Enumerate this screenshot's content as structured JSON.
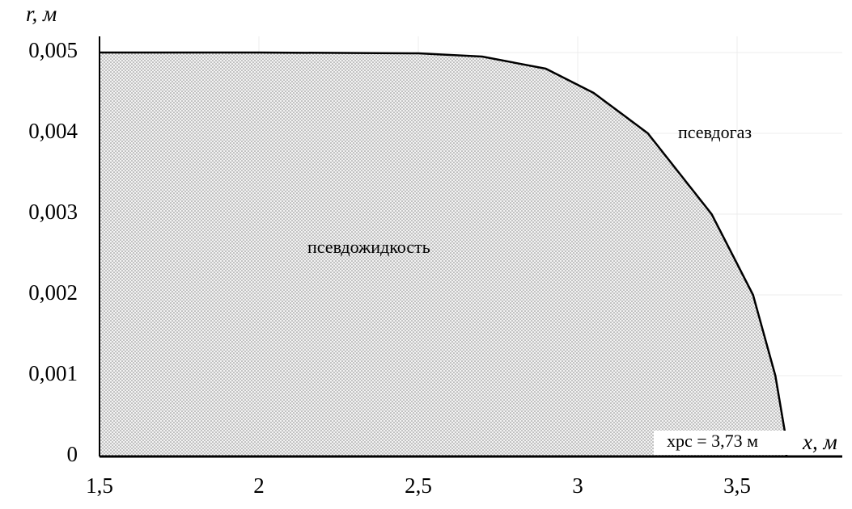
{
  "chart_data": {
    "type": "area",
    "x_label": "x, м",
    "y_label": "r, м",
    "annotations": [
      "псевдогаз",
      "псевдожидкость",
      "xрс = 3,73 м"
    ],
    "x": [
      1.5,
      2.0,
      2.5,
      2.7,
      2.9,
      3.05,
      3.22,
      3.42,
      3.55,
      3.62,
      3.65,
      3.655
    ],
    "values": [
      0.005,
      0.005,
      0.00499,
      0.00495,
      0.0048,
      0.0045,
      0.004,
      0.003,
      0.002,
      0.001,
      0.0003,
      0
    ],
    "color": "#000000",
    "xlim": [
      1.5,
      3.83
    ],
    "ylim": [
      0,
      0.0052
    ],
    "xticks": [
      {
        "value": 1.5,
        "label": "1,5"
      },
      2,
      {
        "value": 2.5,
        "label": "2,5"
      },
      3,
      {
        "value": 3.5,
        "label": "3,5"
      }
    ],
    "yticks": [
      0,
      {
        "value": 0.001,
        "label": "0,001"
      },
      {
        "value": 0.002,
        "label": "0,002"
      },
      {
        "value": 0.003,
        "label": "0,003"
      },
      {
        "value": 0.004,
        "label": "0,004"
      },
      {
        "value": 0.005,
        "label": "0,005"
      }
    ],
    "grid": true
  }
}
